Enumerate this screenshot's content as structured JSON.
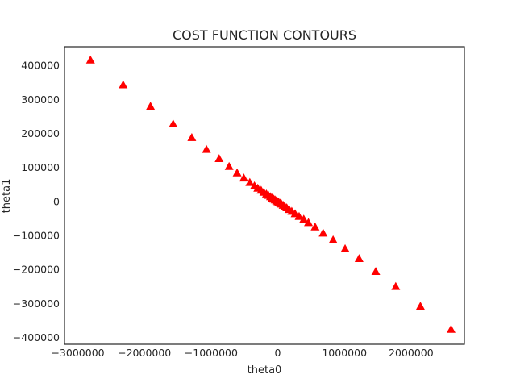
{
  "chart_data": {
    "type": "scatter",
    "title": "COST FUNCTION CONTOURS",
    "xlabel": "theta0",
    "ylabel": "theta1",
    "xlim": [
      -3200000,
      2800000
    ],
    "ylim": [
      -420000,
      455000
    ],
    "grid": false,
    "marker": "triangle",
    "marker_color": "#ff0000",
    "x_ticks": [
      -3000000,
      -2000000,
      -1000000,
      0,
      1000000,
      2000000
    ],
    "x_tick_labels": [
      "−3000000",
      "−2000000",
      "−1000000",
      "0",
      "1000000",
      "2000000"
    ],
    "y_ticks": [
      -400000,
      -300000,
      -200000,
      -100000,
      0,
      100000,
      200000,
      300000,
      400000
    ],
    "y_tick_labels": [
      "−400000",
      "−300000",
      "−200000",
      "−100000",
      "0",
      "100000",
      "200000",
      "300000",
      "400000"
    ],
    "points": [
      {
        "x": -2810000,
        "y": 416000
      },
      {
        "x": -2320000,
        "y": 343000
      },
      {
        "x": -1910000,
        "y": 280000
      },
      {
        "x": -1570000,
        "y": 228000
      },
      {
        "x": -1290000,
        "y": 188000
      },
      {
        "x": -1070000,
        "y": 153000
      },
      {
        "x": -880000,
        "y": 126000
      },
      {
        "x": -730000,
        "y": 103000
      },
      {
        "x": -610000,
        "y": 84000
      },
      {
        "x": -510000,
        "y": 69000
      },
      {
        "x": -420000,
        "y": 56000
      },
      {
        "x": -350000,
        "y": 46000
      },
      {
        "x": -300000,
        "y": 39000
      },
      {
        "x": -250000,
        "y": 33000
      },
      {
        "x": -210000,
        "y": 27000
      },
      {
        "x": -170000,
        "y": 22000
      },
      {
        "x": -140000,
        "y": 18000
      },
      {
        "x": -110000,
        "y": 14000
      },
      {
        "x": -85000,
        "y": 10000
      },
      {
        "x": -60000,
        "y": 7000
      },
      {
        "x": -40000,
        "y": 4500
      },
      {
        "x": -20000,
        "y": 2000
      },
      {
        "x": 0,
        "y": -500
      },
      {
        "x": 15000,
        "y": -2500
      },
      {
        "x": 35000,
        "y": -5000
      },
      {
        "x": 55000,
        "y": -7500
      },
      {
        "x": 80000,
        "y": -11000
      },
      {
        "x": 105000,
        "y": -14500
      },
      {
        "x": 135000,
        "y": -18500
      },
      {
        "x": 170000,
        "y": -23500
      },
      {
        "x": 210000,
        "y": -29000
      },
      {
        "x": 260000,
        "y": -36000
      },
      {
        "x": 320000,
        "y": -44000
      },
      {
        "x": 390000,
        "y": -52000
      },
      {
        "x": 460000,
        "y": -62000
      },
      {
        "x": 560000,
        "y": -75000
      },
      {
        "x": 680000,
        "y": -93000
      },
      {
        "x": 830000,
        "y": -113000
      },
      {
        "x": 1010000,
        "y": -139000
      },
      {
        "x": 1220000,
        "y": -168000
      },
      {
        "x": 1470000,
        "y": -206000
      },
      {
        "x": 1770000,
        "y": -250000
      },
      {
        "x": 2140000,
        "y": -308000
      },
      {
        "x": 2600000,
        "y": -376000
      }
    ]
  }
}
